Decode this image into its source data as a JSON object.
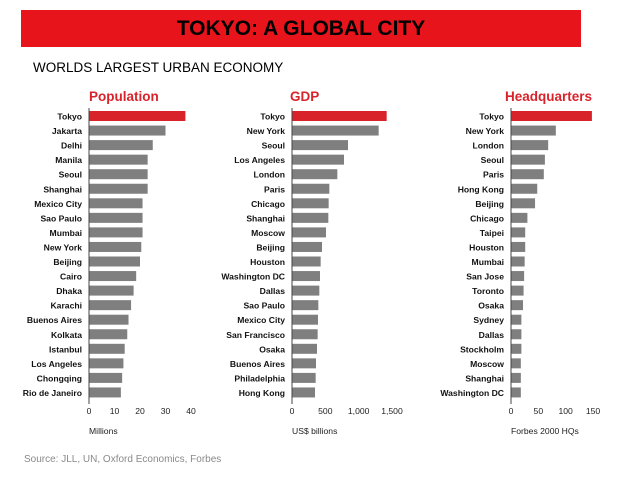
{
  "banner": {
    "title": "TOKYO: A GLOBAL CITY"
  },
  "subtitle": "WORLDS LARGEST URBAN ECONOMY",
  "source": "Source: JLL, UN, Oxford Economics, Forbes",
  "colors": {
    "banner": "#e8141b",
    "highlight": "#d9232b",
    "bar": "#7f7f7f",
    "title": "#d9232b"
  },
  "chart_data": [
    {
      "type": "bar",
      "orientation": "horizontal",
      "title": "Population",
      "xlabel": "Millions",
      "xlim": [
        0,
        40
      ],
      "ticks": [
        "0",
        "10",
        "20",
        "30",
        "40"
      ],
      "categories": [
        "Tokyo",
        "Jakarta",
        "Delhi",
        "Manila",
        "Seoul",
        "Shanghai",
        "Mexico City",
        "Sao Paulo",
        "Mumbai",
        "New York",
        "Beijing",
        "Cairo",
        "Dhaka",
        "Karachi",
        "Buenos Aires",
        "Kolkata",
        "Istanbul",
        "Los Angeles",
        "Chongqing",
        "Rio de Janeiro"
      ],
      "values": [
        37.8,
        30.0,
        25.0,
        23.0,
        23.0,
        23.0,
        21.0,
        21.0,
        21.0,
        20.5,
        20.0,
        18.5,
        17.5,
        16.5,
        15.5,
        15.0,
        14.0,
        13.5,
        13.0,
        12.5
      ]
    },
    {
      "type": "bar",
      "orientation": "horizontal",
      "title": "GDP",
      "xlabel": "US$ billions",
      "xlim": [
        0,
        1500
      ],
      "ticks": [
        "0",
        "500",
        "1,000",
        "1,500"
      ],
      "categories": [
        "Tokyo",
        "New York",
        "Seoul",
        "Los Angeles",
        "London",
        "Paris",
        "Chicago",
        "Shanghai",
        "Moscow",
        "Beijing",
        "Houston",
        "Washington DC",
        "Dallas",
        "Sao Paulo",
        "Mexico City",
        "San Francisco",
        "Osaka",
        "Buenos Aires",
        "Philadelphia",
        "Hong Kong"
      ],
      "values": [
        1420,
        1300,
        840,
        780,
        680,
        560,
        550,
        545,
        510,
        450,
        430,
        420,
        410,
        395,
        390,
        385,
        375,
        360,
        355,
        345
      ]
    },
    {
      "type": "bar",
      "orientation": "horizontal",
      "title": "Headquarters",
      "xlabel": "Forbes 2000 HQs",
      "xlim": [
        0,
        150
      ],
      "ticks": [
        "0",
        "50",
        "100",
        "150"
      ],
      "categories": [
        "Tokyo",
        "New York",
        "London",
        "Seoul",
        "Paris",
        "Hong Kong",
        "Beijing",
        "Chicago",
        "Taipei",
        "Houston",
        "Mumbai",
        "San Jose",
        "Toronto",
        "Osaka",
        "Sydney",
        "Dallas",
        "Stockholm",
        "Moscow",
        "Shanghai",
        "Washington DC"
      ],
      "values": [
        148,
        82,
        68,
        62,
        60,
        48,
        44,
        30,
        26,
        26,
        25,
        24,
        23,
        22,
        19,
        19,
        19,
        18,
        18,
        18
      ]
    }
  ]
}
